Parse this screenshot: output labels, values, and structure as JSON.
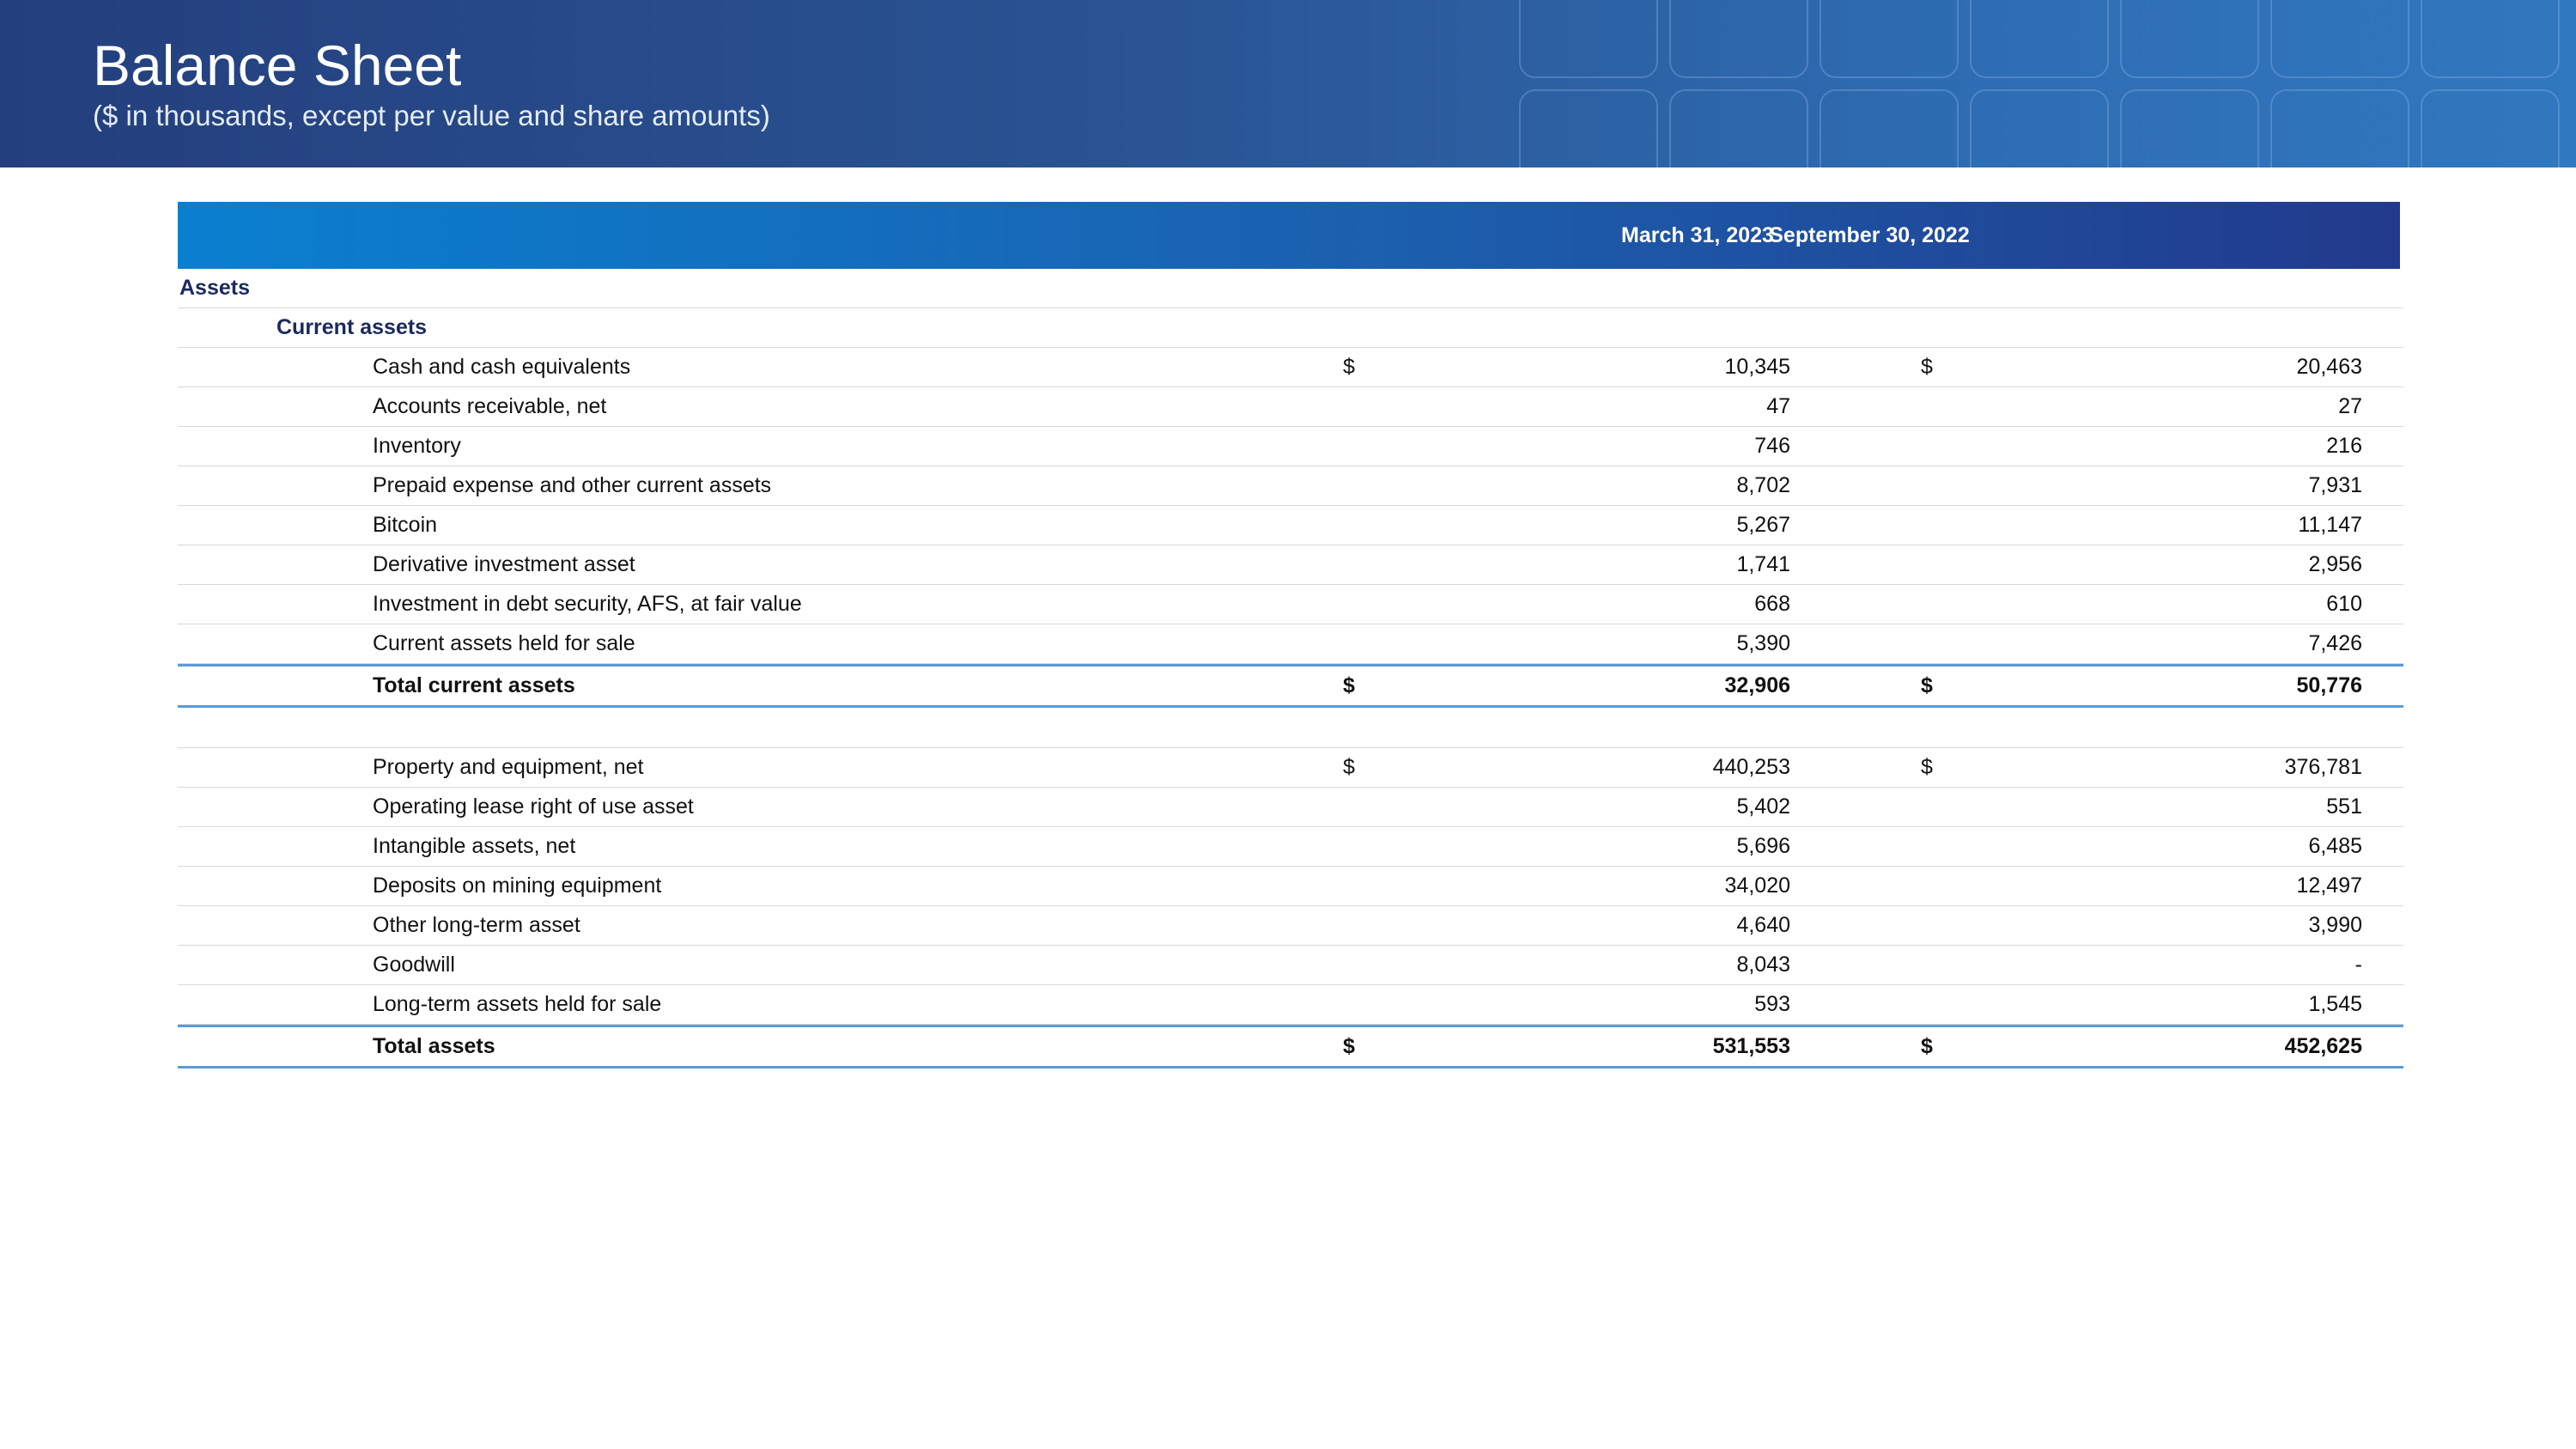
{
  "header": {
    "title": "Balance Sheet",
    "subtitle": "($ in thousands, except per value and share amounts)"
  },
  "table": {
    "columns": [
      "March 31, 2023",
      "September 30, 2022"
    ],
    "rows": [
      {
        "label": "Assets",
        "level": 0,
        "type": "section"
      },
      {
        "label": "Current assets",
        "level": 1,
        "type": "section"
      },
      {
        "label": "Cash and cash equivalents",
        "level": 2,
        "cur": "$",
        "v1": "10,345",
        "v2": "20,463"
      },
      {
        "label": "Accounts receivable, net",
        "level": 2,
        "v1": "47",
        "v2": "27"
      },
      {
        "label": "Inventory",
        "level": 2,
        "v1": "746",
        "v2": "216"
      },
      {
        "label": "Prepaid expense and other current assets",
        "level": 2,
        "v1": "8,702",
        "v2": "7,931"
      },
      {
        "label": "Bitcoin",
        "level": 2,
        "v1": "5,267",
        "v2": "11,147"
      },
      {
        "label": "Derivative investment asset",
        "level": 2,
        "v1": "1,741",
        "v2": "2,956"
      },
      {
        "label": "Investment in debt security, AFS, at fair value",
        "level": 2,
        "v1": "668",
        "v2": "610"
      },
      {
        "label": "Current assets held for sale",
        "level": 2,
        "v1": "5,390",
        "v2": "7,426"
      },
      {
        "label": "Total current assets",
        "level": 2,
        "type": "total",
        "cur": "$",
        "v1": "32,906",
        "v2": "50,776"
      },
      {
        "label": "",
        "type": "spacer"
      },
      {
        "label": "Property and equipment, net",
        "level": 2,
        "cur": "$",
        "v1": "440,253",
        "v2": "376,781"
      },
      {
        "label": "Operating lease right of use asset",
        "level": 2,
        "v1": "5,402",
        "v2": "551"
      },
      {
        "label": "Intangible assets, net",
        "level": 2,
        "v1": "5,696",
        "v2": "6,485"
      },
      {
        "label": "Deposits on mining equipment",
        "level": 2,
        "v1": "34,020",
        "v2": "12,497"
      },
      {
        "label": "Other long-term asset",
        "level": 2,
        "v1": "4,640",
        "v2": "3,990"
      },
      {
        "label": "Goodwill",
        "level": 2,
        "v1": "8,043",
        "v2": "-"
      },
      {
        "label": "Long-term assets held for sale",
        "level": 2,
        "v1": "593",
        "v2": "1,545"
      },
      {
        "label": "Total assets",
        "level": 2,
        "type": "total",
        "cur": "$",
        "v1": "531,553",
        "v2": "452,625"
      }
    ]
  }
}
